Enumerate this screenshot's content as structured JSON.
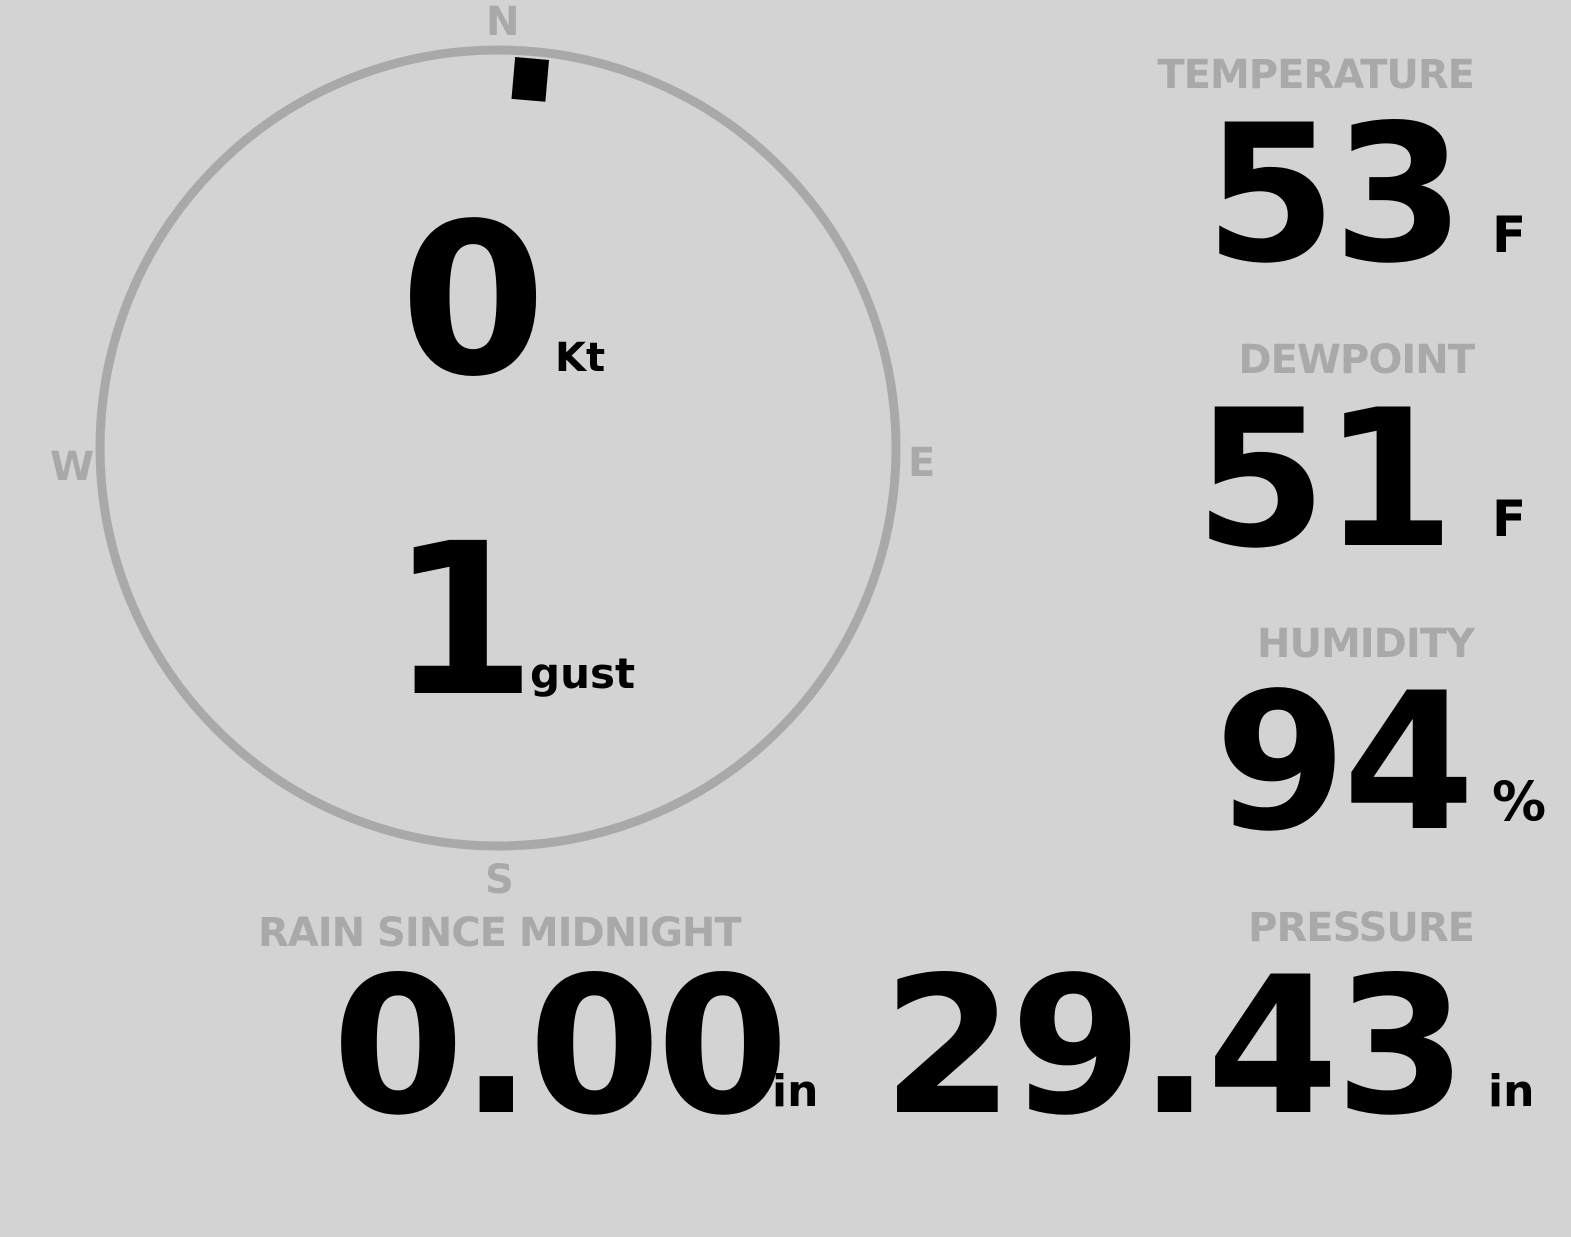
{
  "wind": {
    "speed": "0",
    "speed_unit": "Kt",
    "gust": "1",
    "gust_unit": "gust",
    "direction_deg": 5,
    "cardinals": {
      "n": "N",
      "e": "E",
      "s": "S",
      "w": "W"
    }
  },
  "temperature": {
    "label": "TEMPERATURE",
    "value": "53",
    "unit": "F"
  },
  "dewpoint": {
    "label": "DEWPOINT",
    "value": "51",
    "unit": "F"
  },
  "humidity": {
    "label": "HUMIDITY",
    "value": "94",
    "unit": "%"
  },
  "rain": {
    "label": "RAIN SINCE MIDNIGHT",
    "value": "0.00",
    "unit": "in"
  },
  "pressure": {
    "label": "PRESSURE",
    "value": "29.43",
    "unit": "in"
  },
  "colors": {
    "background": "#d3d3d3",
    "dim": "#a9a9a9",
    "value": "#000000"
  }
}
